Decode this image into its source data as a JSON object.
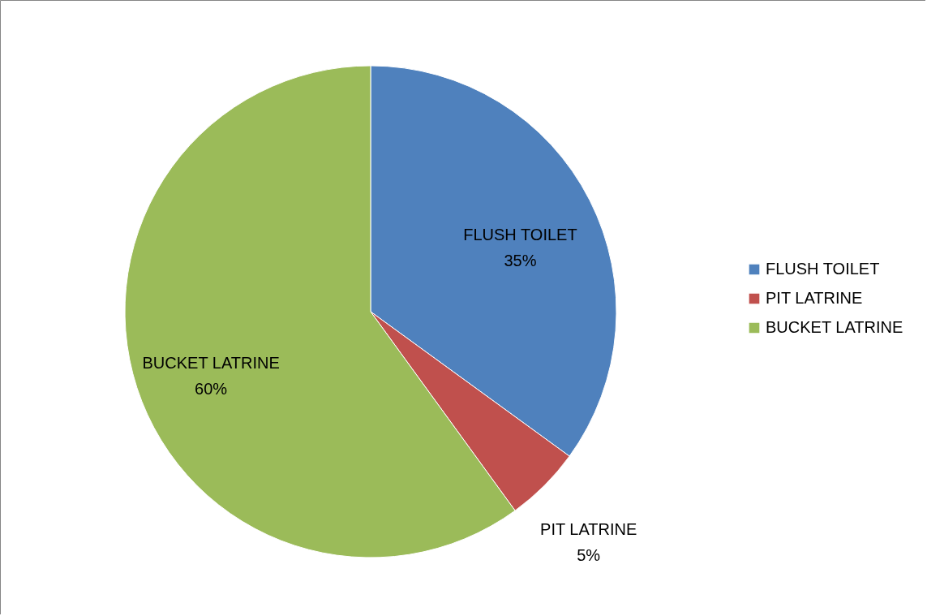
{
  "chart_data": {
    "type": "pie",
    "categories": [
      "FLUSH TOILET",
      "PIT LATRINE",
      "BUCKET LATRINE"
    ],
    "values": [
      35,
      5,
      60
    ],
    "colors": [
      "#4f81bd",
      "#c0504d",
      "#9bbb59"
    ],
    "value_labels": [
      "35%",
      "5%",
      "60%"
    ],
    "legend": "right"
  }
}
